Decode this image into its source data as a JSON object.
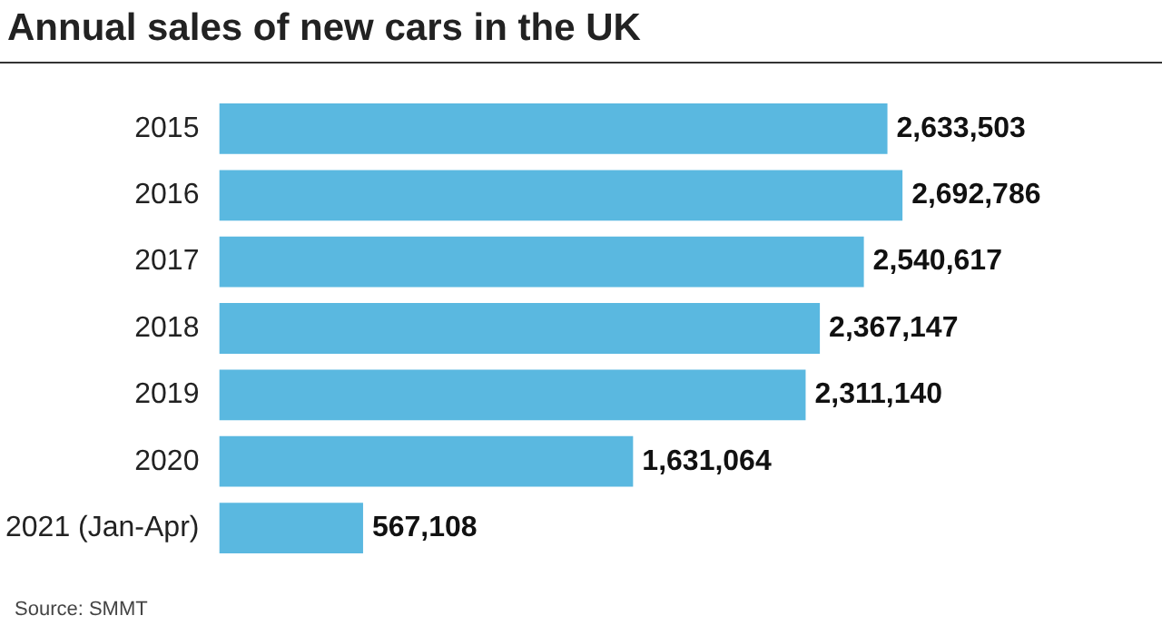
{
  "chart_data": {
    "type": "bar",
    "orientation": "horizontal",
    "title": "Annual sales of new cars in the UK",
    "categories": [
      "2015",
      "2016",
      "2017",
      "2018",
      "2019",
      "2020",
      "2021 (Jan-Apr)"
    ],
    "values": [
      2633503,
      2692786,
      2540617,
      2367147,
      2311140,
      1631064,
      567108
    ],
    "value_labels": [
      "2,633,503",
      "2,692,786",
      "2,540,617",
      "2,367,147",
      "2,311,140",
      "1,631,064",
      "567,108"
    ],
    "color": "#5ab8e0",
    "legend": false,
    "annotations": [
      "Source: SMMT"
    ]
  }
}
